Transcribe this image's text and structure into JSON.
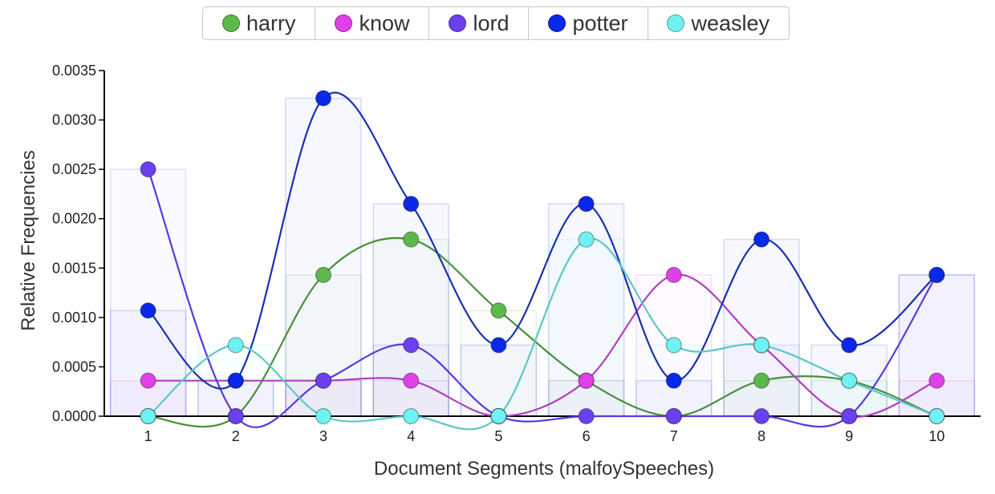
{
  "chart_data": {
    "type": "line",
    "xlabel": "Document Segments (malfoySpeeches)",
    "ylabel": "Relative Frequencies",
    "x": [
      1,
      2,
      3,
      4,
      5,
      6,
      7,
      8,
      9,
      10
    ],
    "ylim": [
      0,
      0.0035
    ],
    "yticks": [
      "0.0000",
      "0.0005",
      "0.0010",
      "0.0015",
      "0.0020",
      "0.0025",
      "0.0030",
      "0.0035"
    ],
    "yticks_values": [
      0,
      0.0005,
      0.001,
      0.0015,
      0.002,
      0.0025,
      0.003,
      0.0035
    ],
    "legend_position": "top-center",
    "grid": false,
    "series": [
      {
        "name": "harry",
        "color": "#5cb84a",
        "line_color": "#4a8f3c",
        "values": [
          0,
          0,
          0.00143,
          0.00179,
          0.00107,
          0.00036,
          0,
          0.00036,
          0.00036,
          0
        ]
      },
      {
        "name": "know",
        "color": "#e040e8",
        "line_color": "#b040c0",
        "values": [
          0.00036,
          0.00036,
          0.00036,
          0.00036,
          0,
          0.00036,
          0.00143,
          0.00072,
          0,
          0.00036
        ]
      },
      {
        "name": "lord",
        "color": "#6a40f0",
        "line_color": "#5a38e0",
        "values": [
          0.0025,
          0,
          0.00036,
          0.00072,
          0,
          0,
          0,
          0,
          0,
          0.00143
        ]
      },
      {
        "name": "potter",
        "color": "#0a28e8",
        "line_color": "#1a30b0",
        "values": [
          0.00107,
          0.00036,
          0.00322,
          0.00215,
          0.00072,
          0.00215,
          0.00036,
          0.00179,
          0.00072,
          0.00143
        ]
      },
      {
        "name": "weasley",
        "color": "#6ef2f2",
        "line_color": "#5ac8c8",
        "values": [
          0,
          0.00072,
          0,
          0,
          0,
          0.00179,
          0.00072,
          0.00072,
          0.00036,
          0
        ]
      }
    ]
  }
}
